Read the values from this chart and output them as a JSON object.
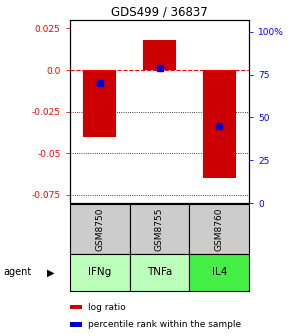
{
  "title": "GDS499 / 36837",
  "bars": [
    {
      "x": 0,
      "label": "GSM8750",
      "agent": "IFNg",
      "log_ratio": -0.04,
      "percentile": 70.0,
      "agent_color": "#bbffbb"
    },
    {
      "x": 1,
      "label": "GSM8755",
      "agent": "TNFa",
      "log_ratio": 0.018,
      "percentile": 79.0,
      "agent_color": "#bbffbb"
    },
    {
      "x": 2,
      "label": "GSM8760",
      "agent": "IL4",
      "log_ratio": -0.065,
      "percentile": 45.0,
      "agent_color": "#44ee44"
    }
  ],
  "ylim_left": [
    -0.08,
    0.03
  ],
  "ylim_right": [
    0.0,
    106.67
  ],
  "yticks_left": [
    0.025,
    0.0,
    -0.025,
    -0.05,
    -0.075
  ],
  "yticks_right": [
    100,
    75,
    50,
    25,
    0
  ],
  "grid_lines": [
    -0.025,
    -0.05,
    -0.075
  ],
  "bar_color": "#cc0000",
  "dot_color": "#0000cc",
  "bar_width": 0.55,
  "dot_size": 18,
  "gsm_bg": "#cccccc",
  "legend_items": [
    {
      "color": "#cc0000",
      "label": "log ratio"
    },
    {
      "color": "#0000cc",
      "label": "percentile rank within the sample"
    }
  ]
}
